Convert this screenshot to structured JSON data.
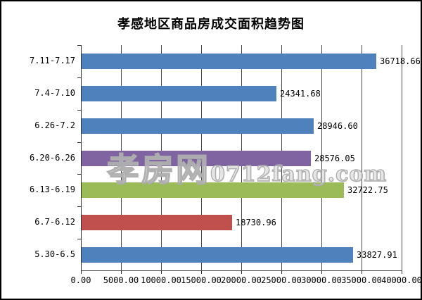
{
  "frame": {
    "background": "#ffffff",
    "border_color": "#000000"
  },
  "chart_data": {
    "type": "bar",
    "orientation": "horizontal",
    "title": "孝感地区商品房成交面积趋势图",
    "categories": [
      "7.11-7.17",
      "7.4-7.10",
      "6.26-7.2",
      "6.20-6.26",
      "6.13-6.19",
      "6.7-6.12",
      "5.30-6.5"
    ],
    "values": [
      36718.66,
      24341.68,
      28946.6,
      28576.05,
      32722.75,
      18730.96,
      33827.91
    ],
    "value_labels": [
      "36718.66",
      "24341.68",
      "28946.60",
      "28576.05",
      "32722.75",
      "18730.96",
      "33827.91"
    ],
    "bar_colors": [
      "#4f81bd",
      "#4f81bd",
      "#4f81bd",
      "#8064a2",
      "#9bbb59",
      "#c0504d",
      "#4f81bd"
    ],
    "xlim": [
      0,
      40000
    ],
    "x_tick_values": [
      0,
      5000,
      10000,
      15000,
      20000,
      25000,
      30000,
      35000,
      40000
    ],
    "x_tick_labels": [
      "0.00",
      "5000.00",
      "10000.00",
      "15000.00",
      "20000.00",
      "25000.00",
      "30000.00",
      "35000.00",
      "40000.00"
    ],
    "grid": "vertical-gridlines-on",
    "legend": "none",
    "axis_color": "#333333",
    "gridline_color": "#4a4a4a"
  },
  "watermark": {
    "site_name": "孝房网",
    "site_url": "0712fang.com",
    "outline_color": "#adadad"
  }
}
